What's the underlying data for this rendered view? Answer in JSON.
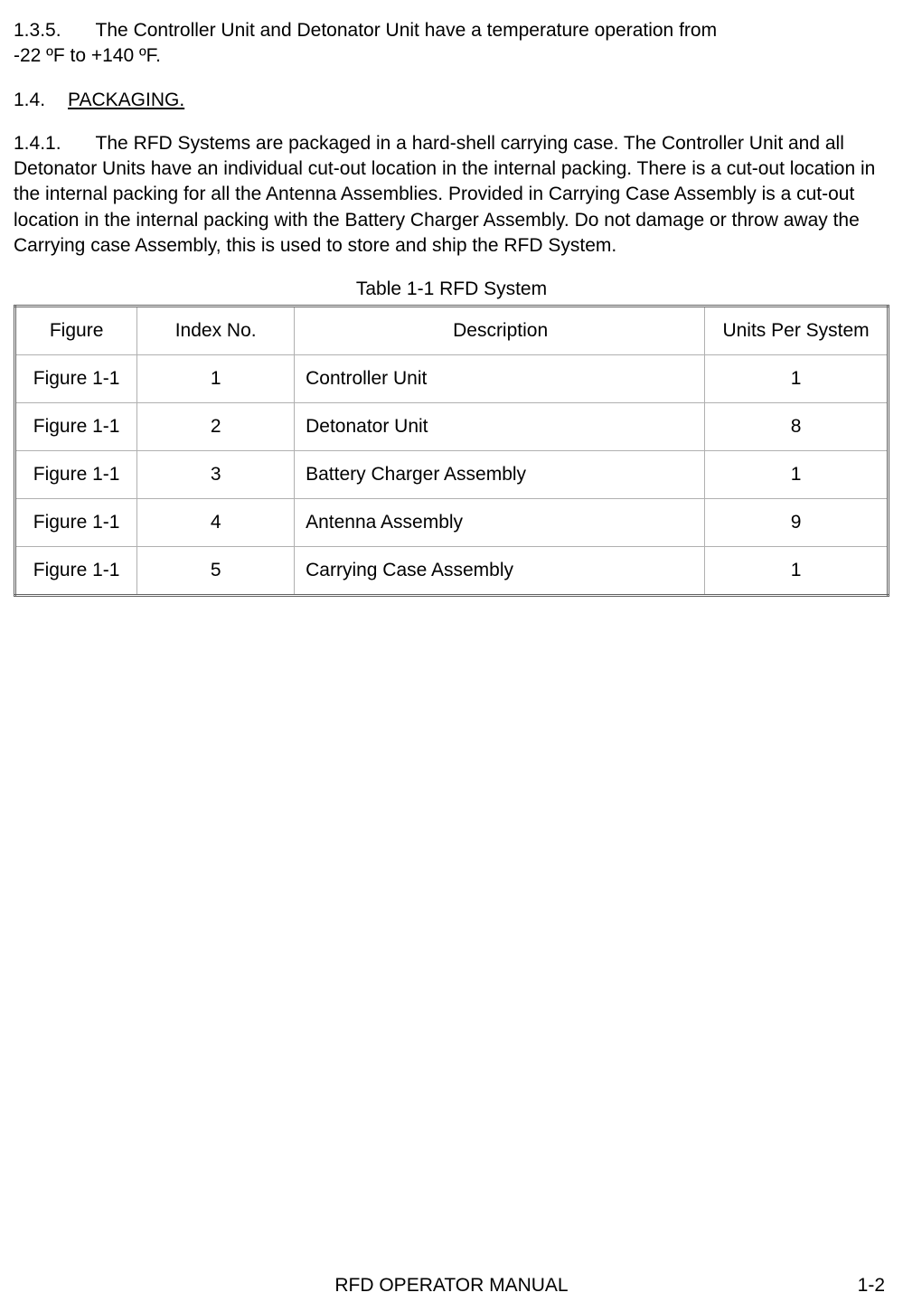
{
  "section_1_3_5": {
    "num": "1.3.5.",
    "text": "The Controller Unit and Detonator Unit have a temperature operation from",
    "line2": "-22 ºF to +140 ºF."
  },
  "section_1_4": {
    "num": "1.4.",
    "heading": "PACKAGING."
  },
  "section_1_4_1": {
    "num": "1.4.1.",
    "text": "The RFD Systems are packaged in a hard-shell carrying case.  The Controller Unit and all Detonator Units have an individual cut-out location in the internal packing.  There is a cut-out location in the internal packing for all the Antenna Assemblies.  Provided in Carrying Case Assembly is a cut-out location in the internal packing with the Battery Charger Assembly.  Do not damage or throw away the Carrying case Assembly, this is used to store and ship the RFD System."
  },
  "table": {
    "caption": "Table 1-1 RFD System",
    "columns": [
      "Figure",
      "Index No.",
      "Description",
      "Units Per System"
    ],
    "rows": [
      [
        "Figure 1-1",
        "1",
        "Controller Unit",
        "1"
      ],
      [
        "Figure 1-1",
        "2",
        "Detonator Unit",
        "8"
      ],
      [
        "Figure 1-1",
        "3",
        "Battery Charger Assembly",
        "1"
      ],
      [
        "Figure 1-1",
        "4",
        "Antenna Assembly",
        "9"
      ],
      [
        "Figure 1-1",
        "5",
        "Carrying Case Assembly",
        "1"
      ]
    ],
    "border_color": "#606060",
    "cell_border_color": "#b0b0b0",
    "font_size": 21
  },
  "footer": {
    "center": "RFD OPERATOR MANUAL",
    "right": "1-2"
  },
  "colors": {
    "text": "#000000",
    "background": "#ffffff"
  },
  "typography": {
    "font_family": "Arial",
    "body_fontsize": 21
  }
}
